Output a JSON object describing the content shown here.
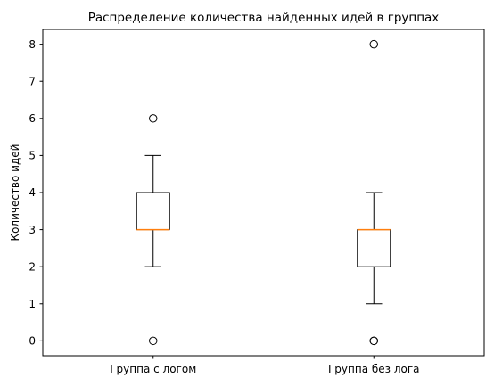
{
  "chart_data": {
    "type": "box",
    "title": "Распределение количества найденных идей в группах",
    "xlabel": "",
    "ylabel": "Количество идей",
    "ylim": [
      -0.4,
      8.4
    ],
    "yticks": [
      0,
      1,
      2,
      3,
      4,
      5,
      6,
      7,
      8
    ],
    "grid": false,
    "categories": [
      "Группа с логом",
      "Группа без лога"
    ],
    "boxes": [
      {
        "category": "Группа с логом",
        "q1": 3,
        "median": 3,
        "q3": 4,
        "whisker_low": 2,
        "whisker_high": 5,
        "outliers": [
          6,
          0
        ]
      },
      {
        "category": "Группа без лога",
        "q1": 2,
        "median": 3,
        "q3": 3,
        "whisker_low": 1,
        "whisker_high": 4,
        "outliers": [
          8,
          0,
          0
        ]
      }
    ],
    "colors": {
      "box": "#000000",
      "median": "#ff7f0e",
      "outlier": "#000000",
      "background": "#ffffff"
    }
  }
}
